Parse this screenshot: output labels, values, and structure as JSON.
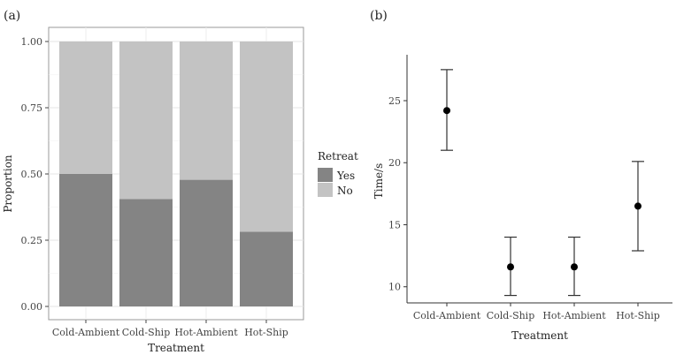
{
  "chart_data": [
    {
      "panel_label": "(a)",
      "type": "bar",
      "stacked": true,
      "categories": [
        "Cold-Ambient",
        "Cold-Ship",
        "Hot-Ambient",
        "Hot-Ship"
      ],
      "series": [
        {
          "name": "Yes",
          "color": "#848484",
          "values": [
            0.5,
            0.405,
            0.478,
            0.282
          ]
        },
        {
          "name": "No",
          "color": "#c3c3c3",
          "values": [
            0.5,
            0.595,
            0.522,
            0.718
          ]
        }
      ],
      "xlabel": "Treatment",
      "ylabel": "Proportion",
      "ylim": [
        0,
        1
      ],
      "yticks": [
        "0.00",
        "0.25",
        "0.50",
        "0.75",
        "1.00"
      ],
      "ytick_values": [
        0,
        0.25,
        0.5,
        0.75,
        1.0
      ],
      "legend_title": "Retreat",
      "legend_position": "right",
      "grid": true
    },
    {
      "panel_label": "(b)",
      "type": "scatter",
      "errorbars": true,
      "categories": [
        "Cold-Ambient",
        "Cold-Ship",
        "Hot-Ambient",
        "Hot-Ship"
      ],
      "values": [
        24.2,
        11.6,
        11.6,
        16.5
      ],
      "lower": [
        21.0,
        9.3,
        9.3,
        12.9
      ],
      "upper": [
        27.5,
        14.0,
        14.0,
        20.1
      ],
      "xlabel": "Treatment",
      "ylabel": "Time/s",
      "ylim": [
        8.7,
        28.7
      ],
      "yticks": [
        "10",
        "15",
        "20",
        "25"
      ],
      "ytick_values": [
        10,
        15,
        20,
        25
      ],
      "grid": false
    }
  ]
}
